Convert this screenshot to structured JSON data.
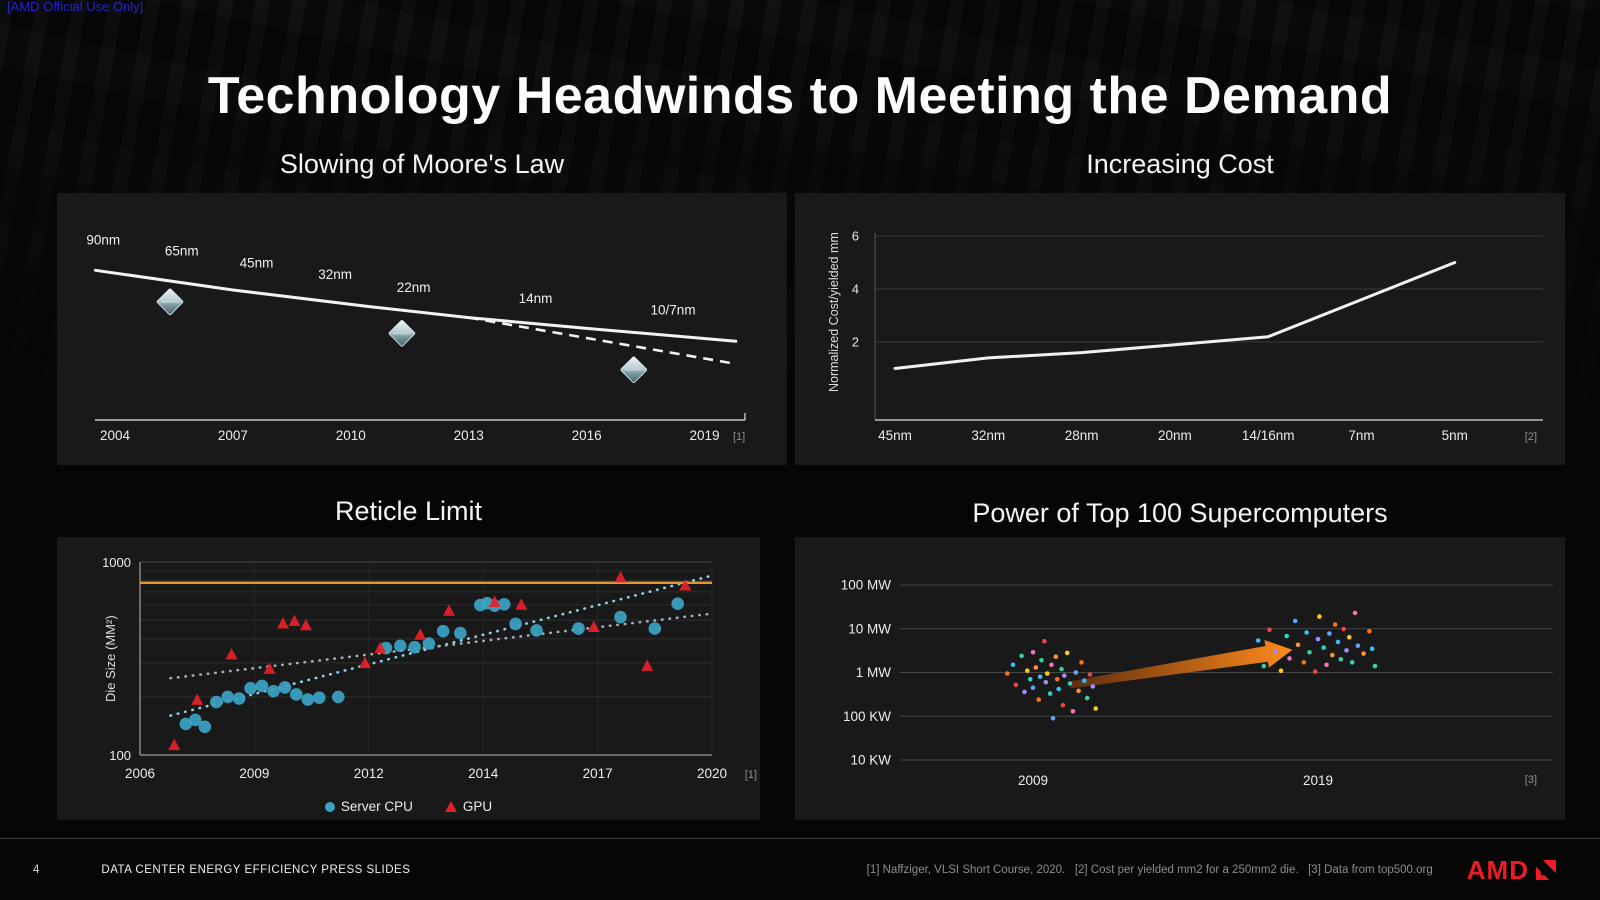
{
  "classification": "[AMD Official Use Only]",
  "title": "Technology Headwinds to Meeting the Demand",
  "colors": {
    "classification_blue": "#2424D2",
    "amd_red": "#ED1C24",
    "server_cpu_blue": "#3BA3C4",
    "gpu_red": "#E02128",
    "reticle_orange": "#E8962E",
    "arrow_orange": "#FF8A1C",
    "line_white": "#F0F0F0",
    "panel_bg": "#191919"
  },
  "footer": {
    "page_number": "4",
    "deck_title": "DATA CENTER ENERGY EFFICIENCY PRESS SLIDES",
    "footnotes": "[1] Naffziger, VLSI Short Course, 2020.   [2] Cost per yielded mm2 for a 250mm2 die.   [3] Data from top500.org",
    "logo": "AMD"
  },
  "chart_data": [
    {
      "id": "moores_law",
      "type": "line",
      "title": "Slowing of Moore's Law",
      "footnote": "[1]",
      "x_ticks": [
        "2004",
        "2007",
        "2010",
        "2013",
        "2016",
        "2019"
      ],
      "node_labels": [
        {
          "label": "90nm",
          "x": 2003.7,
          "y": 89
        },
        {
          "label": "65nm",
          "x": 2005.7,
          "y": 83.5
        },
        {
          "label": "45nm",
          "x": 2007.6,
          "y": 77.5
        },
        {
          "label": "32nm",
          "x": 2009.6,
          "y": 71.5
        },
        {
          "label": "22nm",
          "x": 2011.6,
          "y": 65
        },
        {
          "label": "14nm",
          "x": 2014.7,
          "y": 59.5
        },
        {
          "label": "10/7nm",
          "x": 2018.2,
          "y": 53.5
        }
      ],
      "trend_solid": [
        [
          2003.5,
          76
        ],
        [
          2007,
          66
        ],
        [
          2010.5,
          57.5
        ],
        [
          2013,
          52
        ],
        [
          2016,
          46.5
        ],
        [
          2019.8,
          40
        ]
      ],
      "trend_dashed": [
        [
          2013,
          52
        ],
        [
          2019.8,
          28.5
        ]
      ],
      "diamond_markers": [
        [
          2005.4,
          60
        ],
        [
          2011.3,
          44
        ],
        [
          2017.2,
          25.5
        ]
      ]
    },
    {
      "id": "wafer_cost",
      "type": "line",
      "title": "Increasing Cost",
      "footnote": "[2]",
      "ylabel": "Normalized Cost/yielded mm",
      "categories": [
        "45nm",
        "32nm",
        "28nm",
        "20nm",
        "14/16nm",
        "7nm",
        "5nm"
      ],
      "values": [
        1.0,
        1.4,
        1.6,
        1.9,
        2.2,
        3.6,
        5.0
      ],
      "y_ticks": [
        2,
        4,
        6
      ],
      "ylim": [
        0,
        6.5
      ]
    },
    {
      "id": "reticle_limit",
      "type": "scatter",
      "title": "Reticle Limit",
      "footnote": "[1]",
      "ylabel": "Die Size (MM²)",
      "y_scale": "log",
      "y_ticks": [
        100,
        1000
      ],
      "ylim": [
        100,
        1100
      ],
      "x_ticks": [
        2006,
        2009,
        2012,
        2014,
        2017,
        2020
      ],
      "reticle_line_value": 780,
      "reticle_line_color": "#E8962E",
      "trend_lines": [
        {
          "color": "#8FCFE6",
          "points": [
            [
              2006.8,
              160
            ],
            [
              2020,
              850
            ]
          ]
        },
        {
          "color": "#A6ACB4",
          "points": [
            [
              2006.8,
              250
            ],
            [
              2020,
              540
            ]
          ]
        }
      ],
      "series": [
        {
          "name": "Server CPU",
          "marker": "circle",
          "color": "#3BA3C4",
          "points": [
            [
              2007.2,
              145
            ],
            [
              2007.45,
              152
            ],
            [
              2007.7,
              140
            ],
            [
              2008.0,
              188
            ],
            [
              2008.3,
              200
            ],
            [
              2008.6,
              196
            ],
            [
              2008.9,
              222
            ],
            [
              2009.2,
              228
            ],
            [
              2009.5,
              214
            ],
            [
              2009.8,
              224
            ],
            [
              2010.1,
              206
            ],
            [
              2010.4,
              194
            ],
            [
              2010.7,
              198
            ],
            [
              2011.2,
              200
            ],
            [
              2012.3,
              358
            ],
            [
              2012.55,
              368
            ],
            [
              2012.8,
              362
            ],
            [
              2013.05,
              378
            ],
            [
              2013.3,
              438
            ],
            [
              2013.6,
              428
            ],
            [
              2013.95,
              598
            ],
            [
              2014.1,
              612
            ],
            [
              2014.3,
              594
            ],
            [
              2014.55,
              604
            ],
            [
              2014.85,
              478
            ],
            [
              2015.4,
              442
            ],
            [
              2016.5,
              452
            ],
            [
              2017.6,
              518
            ],
            [
              2018.5,
              452
            ],
            [
              2019.1,
              608
            ]
          ]
        },
        {
          "name": "GPU",
          "marker": "triangle",
          "color": "#E02128",
          "points": [
            [
              2006.9,
              112
            ],
            [
              2007.5,
              192
            ],
            [
              2008.4,
              330
            ],
            [
              2009.4,
              278
            ],
            [
              2009.75,
              478
            ],
            [
              2010.05,
              492
            ],
            [
              2010.35,
              468
            ],
            [
              2011.9,
              298
            ],
            [
              2012.2,
              356
            ],
            [
              2012.9,
              418
            ],
            [
              2013.4,
              556
            ],
            [
              2014.3,
              618
            ],
            [
              2015.0,
              598
            ],
            [
              2016.9,
              458
            ],
            [
              2017.6,
              828
            ],
            [
              2018.3,
              288
            ],
            [
              2019.3,
              752
            ]
          ]
        }
      ]
    },
    {
      "id": "top100_power",
      "type": "scatter",
      "title": "Power of Top 100 Supercomputers",
      "footnote": "[3]",
      "y_scale": "log",
      "y_ticks": [
        {
          "label": "100 MW",
          "kw": 100000
        },
        {
          "label": "10 MW",
          "kw": 10000
        },
        {
          "label": "1 MW",
          "kw": 1000
        },
        {
          "label": "100 KW",
          "kw": 100
        },
        {
          "label": "10 KW",
          "kw": 10
        }
      ],
      "x_ticks": [
        2009,
        2019
      ],
      "arrow": {
        "from_year": 2010.3,
        "from_kw": 520,
        "to_year": 2018.1,
        "to_kw": 3300,
        "color": "#FF8A1C"
      },
      "palette": [
        "#F97316",
        "#38BDF8",
        "#34D399",
        "#EF4444",
        "#A78BFA",
        "#FACC15",
        "#2DD4BF",
        "#F472B6",
        "#60A5FA",
        "#FB923C"
      ],
      "points": [
        [
          2008.1,
          950,
          0
        ],
        [
          2008.3,
          1500,
          1
        ],
        [
          2008.4,
          520,
          3
        ],
        [
          2008.6,
          2400,
          2
        ],
        [
          2008.7,
          360,
          4
        ],
        [
          2008.8,
          1100,
          5
        ],
        [
          2008.9,
          700,
          6
        ],
        [
          2009.0,
          2900,
          7
        ],
        [
          2009.0,
          450,
          8
        ],
        [
          2009.1,
          1300,
          9
        ],
        [
          2009.2,
          240,
          0
        ],
        [
          2009.25,
          800,
          1
        ],
        [
          2009.3,
          1900,
          2
        ],
        [
          2009.4,
          5200,
          3
        ],
        [
          2009.45,
          600,
          4
        ],
        [
          2009.5,
          950,
          5
        ],
        [
          2009.6,
          330,
          6
        ],
        [
          2009.65,
          1500,
          7
        ],
        [
          2009.7,
          90,
          8
        ],
        [
          2009.8,
          2300,
          9
        ],
        [
          2009.85,
          700,
          0
        ],
        [
          2009.9,
          420,
          1
        ],
        [
          2010.0,
          1200,
          2
        ],
        [
          2010.05,
          180,
          3
        ],
        [
          2010.1,
          850,
          4
        ],
        [
          2010.2,
          2800,
          5
        ],
        [
          2010.3,
          560,
          6
        ],
        [
          2010.4,
          130,
          7
        ],
        [
          2010.5,
          1000,
          8
        ],
        [
          2010.6,
          380,
          9
        ],
        [
          2010.7,
          1700,
          0
        ],
        [
          2010.8,
          650,
          1
        ],
        [
          2010.9,
          260,
          2
        ],
        [
          2011.0,
          900,
          3
        ],
        [
          2011.1,
          480,
          4
        ],
        [
          2011.2,
          150,
          5
        ],
        [
          2016.6,
          2600,
          0
        ],
        [
          2016.9,
          5400,
          1
        ],
        [
          2017.1,
          1400,
          2
        ],
        [
          2017.3,
          9500,
          3
        ],
        [
          2017.5,
          3100,
          4
        ],
        [
          2017.7,
          1100,
          5
        ],
        [
          2017.9,
          6800,
          6
        ],
        [
          2018.0,
          2100,
          7
        ],
        [
          2018.2,
          15000,
          8
        ],
        [
          2018.3,
          4300,
          9
        ],
        [
          2018.5,
          1700,
          0
        ],
        [
          2018.6,
          8200,
          1
        ],
        [
          2018.7,
          2900,
          2
        ],
        [
          2018.9,
          1050,
          3
        ],
        [
          2019.0,
          5800,
          4
        ],
        [
          2019.05,
          19000,
          5
        ],
        [
          2019.2,
          3700,
          6
        ],
        [
          2019.3,
          1500,
          7
        ],
        [
          2019.4,
          7800,
          8
        ],
        [
          2019.5,
          2500,
          9
        ],
        [
          2019.6,
          12500,
          0
        ],
        [
          2019.7,
          5000,
          1
        ],
        [
          2019.8,
          2000,
          2
        ],
        [
          2019.9,
          9800,
          3
        ],
        [
          2020.0,
          3200,
          4
        ],
        [
          2020.1,
          6400,
          5
        ],
        [
          2020.2,
          1700,
          6
        ],
        [
          2020.3,
          23000,
          7
        ],
        [
          2020.4,
          4100,
          8
        ],
        [
          2020.6,
          2700,
          9
        ],
        [
          2020.8,
          8800,
          0
        ],
        [
          2020.9,
          3500,
          1
        ],
        [
          2021.0,
          1400,
          2
        ]
      ]
    }
  ]
}
